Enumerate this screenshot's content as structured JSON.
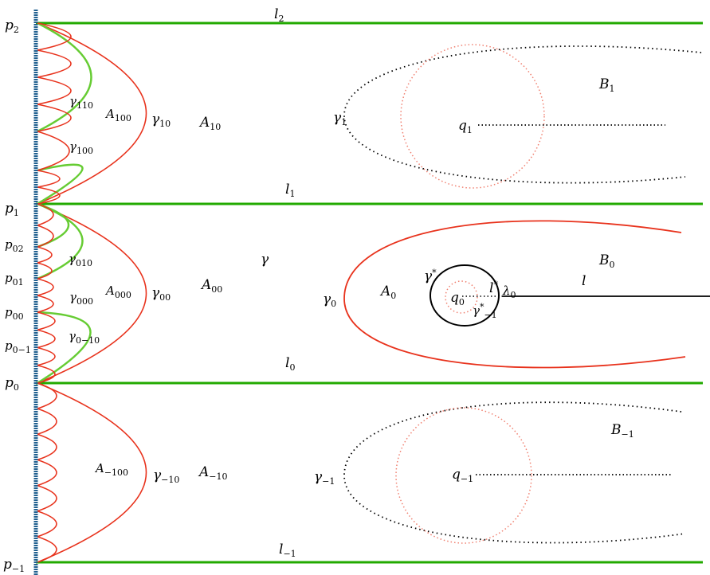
{
  "colors": {
    "boundary": "#1f5f8f",
    "line": "#22aa00",
    "curve": "#e8321c",
    "green_curve": "#66cc33",
    "dotted_circle": "#f08070",
    "dotted": "#000000"
  },
  "labels": [
    {
      "id": "l2",
      "base": "l",
      "sub": "2"
    },
    {
      "id": "l1",
      "base": "l",
      "sub": "1"
    },
    {
      "id": "l0",
      "base": "l",
      "sub": "0"
    },
    {
      "id": "lm1",
      "base": "l",
      "sub": "−1"
    },
    {
      "id": "p2",
      "base": "p",
      "sub": "2"
    },
    {
      "id": "p1",
      "base": "p",
      "sub": "1"
    },
    {
      "id": "p02",
      "base": "p",
      "sub": "02"
    },
    {
      "id": "p01",
      "base": "p",
      "sub": "01"
    },
    {
      "id": "p00",
      "base": "p",
      "sub": "00"
    },
    {
      "id": "p0m1",
      "base": "p",
      "sub": "0−1"
    },
    {
      "id": "p0",
      "base": "p",
      "sub": "0"
    },
    {
      "id": "pm1",
      "base": "p",
      "sub": "−1"
    },
    {
      "id": "g110",
      "base": "γ",
      "sub": "110"
    },
    {
      "id": "A100",
      "base": "A",
      "sub": "100"
    },
    {
      "id": "g10",
      "base": "γ",
      "sub": "10"
    },
    {
      "id": "A10",
      "base": "A",
      "sub": "10"
    },
    {
      "id": "g100",
      "base": "γ",
      "sub": "100"
    },
    {
      "id": "g1",
      "base": "γ",
      "sub": "1"
    },
    {
      "id": "q1",
      "base": "q",
      "sub": "1"
    },
    {
      "id": "B1",
      "base": "B",
      "sub": "1"
    },
    {
      "id": "g010",
      "base": "γ",
      "sub": "010"
    },
    {
      "id": "gam",
      "base": "γ",
      "sub": ""
    },
    {
      "id": "A000",
      "base": "A",
      "sub": "000"
    },
    {
      "id": "g000",
      "base": "γ",
      "sub": "000"
    },
    {
      "id": "g00",
      "base": "γ",
      "sub": "00"
    },
    {
      "id": "A00",
      "base": "A",
      "sub": "00"
    },
    {
      "id": "g0m10",
      "base": "γ",
      "sub": "0−10"
    },
    {
      "id": "g0",
      "base": "γ",
      "sub": "0"
    },
    {
      "id": "A0",
      "base": "A",
      "sub": "0"
    },
    {
      "id": "q0",
      "base": "q",
      "sub": "0"
    },
    {
      "id": "B0",
      "base": "B",
      "sub": "0"
    },
    {
      "id": "l",
      "base": "l",
      "sub": ""
    },
    {
      "id": "lam0",
      "base": "λ",
      "sub": "0"
    },
    {
      "id": "Am100",
      "base": "A",
      "sub": "−100"
    },
    {
      "id": "gm10",
      "base": "γ",
      "sub": "−10"
    },
    {
      "id": "Am10",
      "base": "A",
      "sub": "−10"
    },
    {
      "id": "gm1",
      "base": "γ",
      "sub": "−1"
    },
    {
      "id": "qm1",
      "base": "q",
      "sub": "−1"
    },
    {
      "id": "Bm1",
      "base": "B",
      "sub": "−1"
    }
  ],
  "starred": {
    "gamma_star": {
      "base": "γ",
      "sup": "*"
    },
    "gamma_star_m1": {
      "base": "γ",
      "sup": "*",
      "sub": "−1"
    },
    "l_star": {
      "base": "l",
      "sup": "*"
    }
  }
}
